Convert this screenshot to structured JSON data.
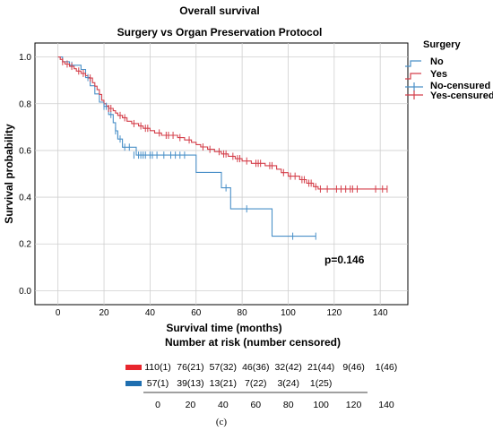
{
  "chart_data": {
    "type": "line",
    "title": "Overall survival",
    "subtitle": "Surgery vs Organ Preservation Protocol",
    "xlabel": "Survival time (months)",
    "ylabel": "Survival probability",
    "xlim": [
      -10,
      152
    ],
    "ylim": [
      -0.06,
      1.06
    ],
    "x_ticks": [
      "0",
      "20",
      "40",
      "60",
      "80",
      "100",
      "120",
      "140"
    ],
    "y_ticks": [
      "0.0",
      "0.2",
      "0.4",
      "0.6",
      "0.8",
      "1.0"
    ],
    "grid": true,
    "legend": {
      "title": "Surgery",
      "placement": "right",
      "entries": [
        "No",
        "Yes",
        "No-censured",
        "Yes-censured"
      ]
    },
    "series": [
      {
        "name": "No",
        "color": "#4a90c8",
        "steps": [
          [
            0,
            1.0
          ],
          [
            2,
            0.98
          ],
          [
            5,
            0.965
          ],
          [
            10,
            0.947
          ],
          [
            12,
            0.912
          ],
          [
            14,
            0.877
          ],
          [
            16,
            0.842
          ],
          [
            18,
            0.807
          ],
          [
            20,
            0.789
          ],
          [
            22,
            0.754
          ],
          [
            24,
            0.719
          ],
          [
            25,
            0.684
          ],
          [
            26,
            0.649
          ],
          [
            28,
            0.614
          ],
          [
            34,
            0.58
          ],
          [
            60,
            0.506
          ],
          [
            71,
            0.44
          ],
          [
            75,
            0.35
          ],
          [
            93,
            0.233
          ],
          [
            112,
            0.233
          ]
        ],
        "censored": [
          [
            6,
            0.965
          ],
          [
            13,
            0.912
          ],
          [
            20,
            0.789
          ],
          [
            21,
            0.789
          ],
          [
            23,
            0.754
          ],
          [
            25,
            0.684
          ],
          [
            26,
            0.665
          ],
          [
            27,
            0.649
          ],
          [
            29,
            0.614
          ],
          [
            31,
            0.614
          ],
          [
            33,
            0.58
          ],
          [
            35,
            0.58
          ],
          [
            36,
            0.58
          ],
          [
            37,
            0.58
          ],
          [
            38,
            0.58
          ],
          [
            40,
            0.58
          ],
          [
            41,
            0.58
          ],
          [
            43,
            0.58
          ],
          [
            46,
            0.58
          ],
          [
            49,
            0.58
          ],
          [
            51,
            0.58
          ],
          [
            53,
            0.58
          ],
          [
            55,
            0.58
          ],
          [
            73,
            0.44
          ],
          [
            82,
            0.35
          ],
          [
            102,
            0.233
          ],
          [
            112,
            0.233
          ]
        ]
      },
      {
        "name": "Yes",
        "color": "#d43f4a",
        "steps": [
          [
            0,
            1.0
          ],
          [
            1,
            0.99
          ],
          [
            2,
            0.98
          ],
          [
            3,
            0.97
          ],
          [
            5,
            0.96
          ],
          [
            7,
            0.95
          ],
          [
            8,
            0.94
          ],
          [
            10,
            0.93
          ],
          [
            12,
            0.92
          ],
          [
            13,
            0.91
          ],
          [
            15,
            0.89
          ],
          [
            16,
            0.875
          ],
          [
            17,
            0.86
          ],
          [
            18,
            0.84
          ],
          [
            19,
            0.815
          ],
          [
            20,
            0.8
          ],
          [
            21,
            0.79
          ],
          [
            22,
            0.78
          ],
          [
            24,
            0.77
          ],
          [
            25,
            0.76
          ],
          [
            26,
            0.75
          ],
          [
            28,
            0.74
          ],
          [
            30,
            0.725
          ],
          [
            32,
            0.715
          ],
          [
            35,
            0.705
          ],
          [
            37,
            0.695
          ],
          [
            40,
            0.685
          ],
          [
            42,
            0.675
          ],
          [
            45,
            0.665
          ],
          [
            52,
            0.655
          ],
          [
            55,
            0.645
          ],
          [
            58,
            0.635
          ],
          [
            60,
            0.625
          ],
          [
            62,
            0.615
          ],
          [
            65,
            0.605
          ],
          [
            68,
            0.595
          ],
          [
            71,
            0.585
          ],
          [
            74,
            0.575
          ],
          [
            77,
            0.565
          ],
          [
            80,
            0.555
          ],
          [
            84,
            0.545
          ],
          [
            90,
            0.535
          ],
          [
            95,
            0.52
          ],
          [
            97,
            0.505
          ],
          [
            100,
            0.49
          ],
          [
            105,
            0.475
          ],
          [
            108,
            0.46
          ],
          [
            111,
            0.445
          ],
          [
            113,
            0.435
          ],
          [
            143,
            0.435
          ]
        ],
        "censored": [
          [
            2,
            0.98
          ],
          [
            4,
            0.97
          ],
          [
            6,
            0.96
          ],
          [
            9,
            0.94
          ],
          [
            11,
            0.93
          ],
          [
            14,
            0.91
          ],
          [
            22,
            0.78
          ],
          [
            23,
            0.78
          ],
          [
            27,
            0.75
          ],
          [
            29,
            0.74
          ],
          [
            33,
            0.715
          ],
          [
            36,
            0.705
          ],
          [
            38,
            0.695
          ],
          [
            39,
            0.695
          ],
          [
            44,
            0.675
          ],
          [
            47,
            0.665
          ],
          [
            48,
            0.665
          ],
          [
            50,
            0.665
          ],
          [
            53,
            0.655
          ],
          [
            57,
            0.645
          ],
          [
            63,
            0.615
          ],
          [
            66,
            0.605
          ],
          [
            70,
            0.595
          ],
          [
            72,
            0.585
          ],
          [
            73,
            0.585
          ],
          [
            76,
            0.575
          ],
          [
            78,
            0.565
          ],
          [
            79,
            0.565
          ],
          [
            82,
            0.555
          ],
          [
            86,
            0.545
          ],
          [
            87,
            0.545
          ],
          [
            88,
            0.545
          ],
          [
            92,
            0.535
          ],
          [
            93,
            0.535
          ],
          [
            98,
            0.505
          ],
          [
            101,
            0.49
          ],
          [
            103,
            0.49
          ],
          [
            106,
            0.475
          ],
          [
            107,
            0.475
          ],
          [
            109,
            0.46
          ],
          [
            110,
            0.46
          ],
          [
            112,
            0.445
          ],
          [
            114,
            0.435
          ],
          [
            117,
            0.435
          ],
          [
            121,
            0.435
          ],
          [
            123,
            0.435
          ],
          [
            125,
            0.435
          ],
          [
            127,
            0.435
          ],
          [
            128,
            0.435
          ],
          [
            130,
            0.435
          ],
          [
            138,
            0.435
          ],
          [
            141,
            0.435
          ],
          [
            143,
            0.435
          ]
        ]
      }
    ],
    "annotations": [
      "p=0.146"
    ],
    "risk_table": {
      "title": "Number at risk (number censored)",
      "x_ticks": [
        "0",
        "20",
        "40",
        "60",
        "80",
        "100",
        "120",
        "140"
      ],
      "rows": [
        {
          "name": "Yes",
          "color": "#e8262d",
          "values": [
            "110(1)",
            "76(21)",
            "57(32)",
            "46(36)",
            "32(42)",
            "21(44)",
            "9(46)",
            "1(46)"
          ]
        },
        {
          "name": "No",
          "color": "#1f6fb0",
          "values": [
            "57(1)",
            "39(13)",
            "13(21)",
            "7(22)",
            "3(24)",
            "1(25)",
            "",
            ""
          ]
        }
      ]
    },
    "panel_label": "(c)"
  }
}
